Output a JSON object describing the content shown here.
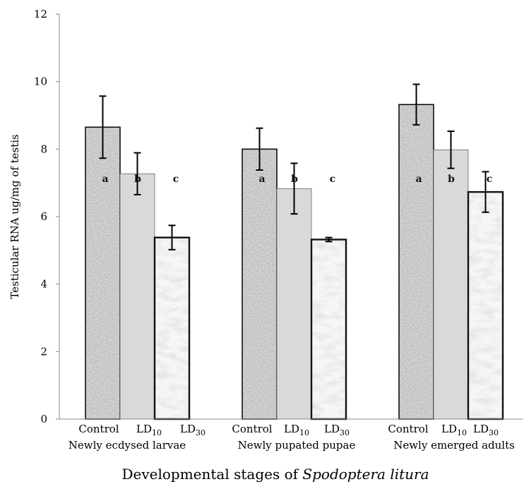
{
  "chart_data": {
    "type": "bar",
    "ylabel": "Testicular RNA ug/mg of testis",
    "xlabel_prefix": "Developmental stages of ",
    "xlabel_italic": "Spodoptera litura",
    "ylim": [
      0,
      12
    ],
    "yticks": [
      "0",
      "2",
      "4",
      "6",
      "8",
      "10",
      "12"
    ],
    "groups": [
      {
        "label": "Newly ecdysed larvae",
        "bars": [
          {
            "label": "Control",
            "value": 8.65,
            "err": 0.92,
            "sig": "a"
          },
          {
            "label": "LD",
            "sub": "10",
            "value": 7.27,
            "err": 0.62,
            "sig": "b"
          },
          {
            "label": "LD",
            "sub": "30",
            "value": 5.38,
            "err": 0.36,
            "sig": "c"
          }
        ]
      },
      {
        "label": "Newly pupated pupae",
        "bars": [
          {
            "label": "Control",
            "value": 8.0,
            "err": 0.62,
            "sig": "a"
          },
          {
            "label": "LD",
            "sub": "10",
            "value": 6.83,
            "err": 0.75,
            "sig": "b"
          },
          {
            "label": "LD",
            "sub": "30",
            "value": 5.32,
            "err": 0.06,
            "sig": "c"
          }
        ]
      },
      {
        "label": "Newly emerged adults",
        "bars": [
          {
            "label": "Control",
            "value": 9.32,
            "err": 0.6,
            "sig": "a"
          },
          {
            "label": "LD",
            "sub": "10",
            "value": 7.98,
            "err": 0.55,
            "sig": "b"
          },
          {
            "label": "LD",
            "sub": "30",
            "value": 6.73,
            "err": 0.6,
            "sig": "c"
          }
        ]
      }
    ],
    "grid": false,
    "legend": "none"
  }
}
